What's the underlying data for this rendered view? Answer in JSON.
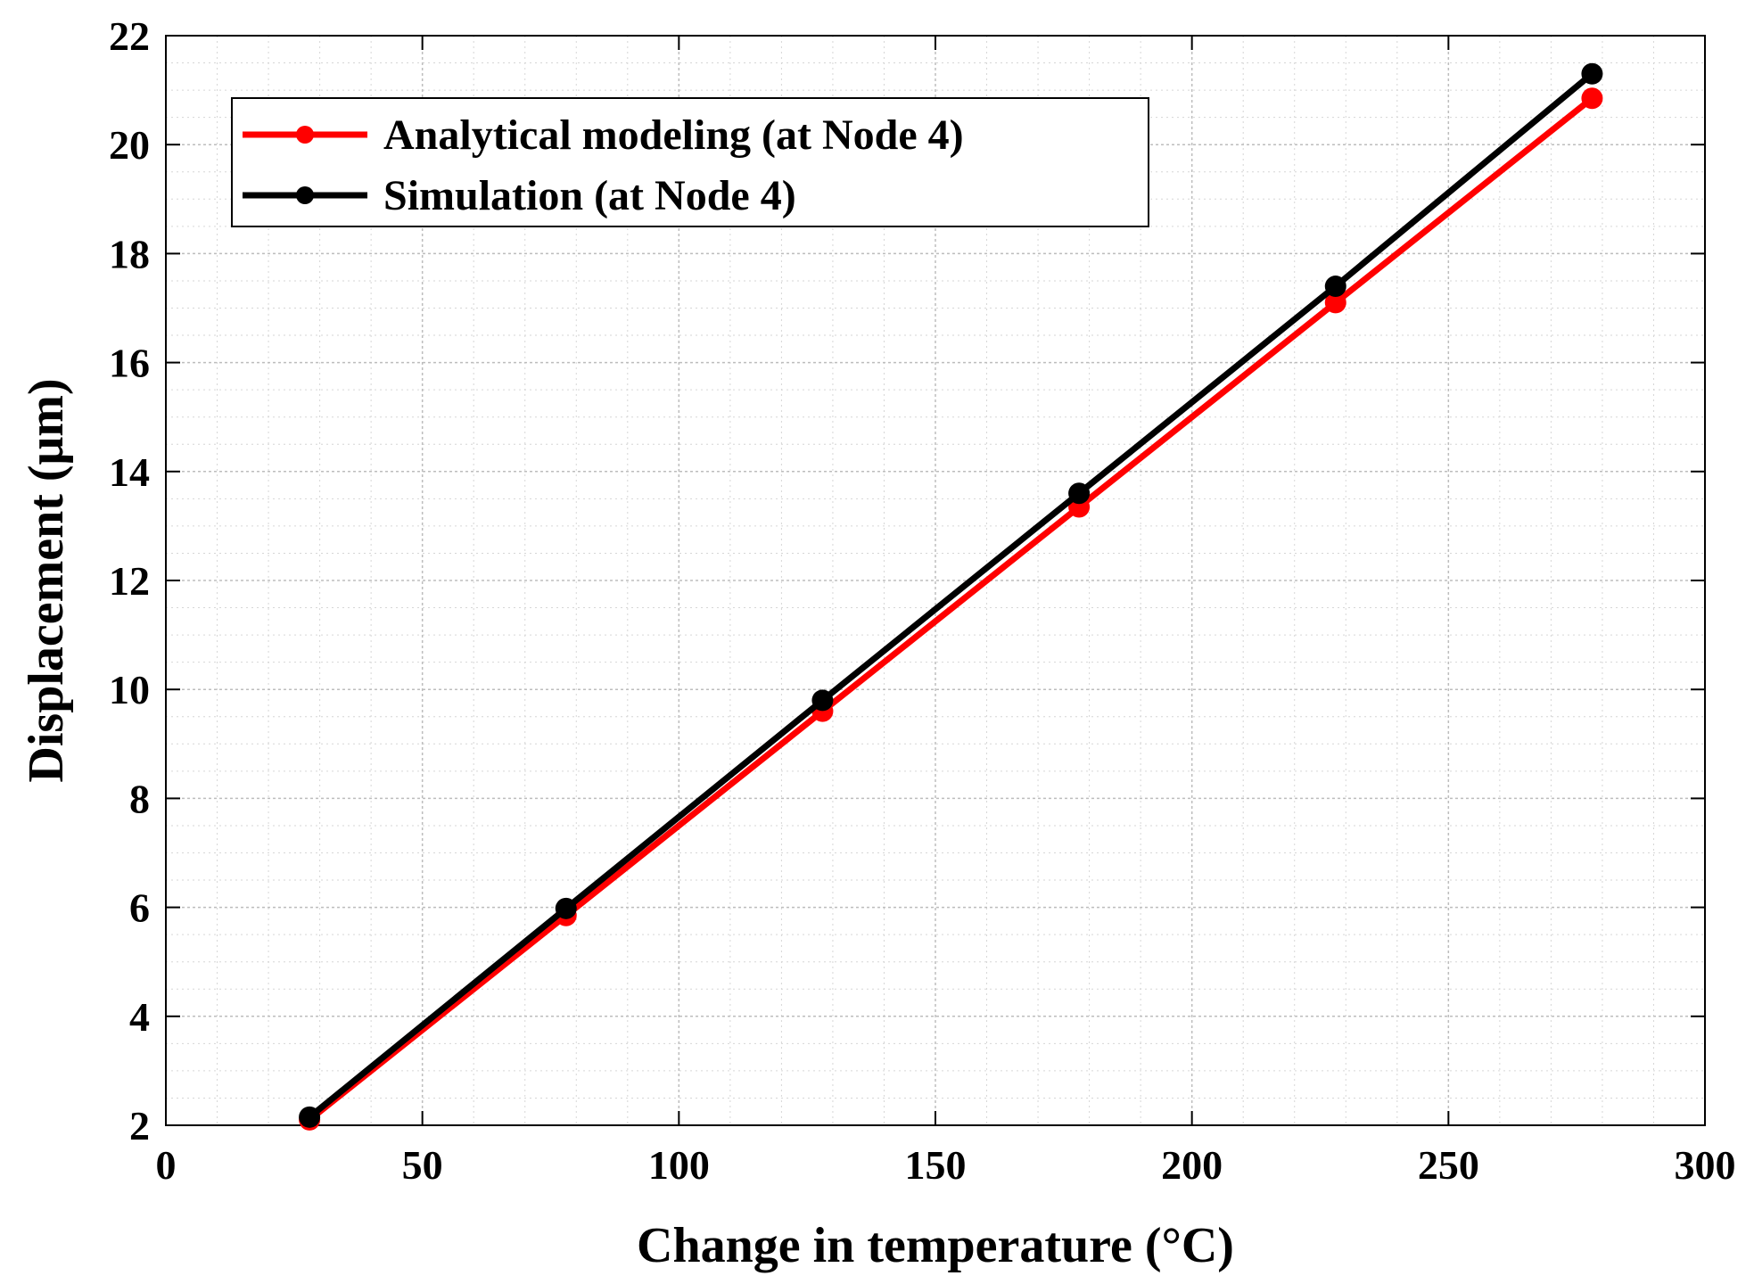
{
  "chart_data": {
    "type": "line",
    "title": "",
    "xlabel": "Change in temperature (°C)",
    "ylabel": "Displacement (μm)",
    "xlim": [
      0,
      300
    ],
    "ylim": [
      2,
      22
    ],
    "xticks": [
      0,
      50,
      100,
      150,
      200,
      250,
      300
    ],
    "yticks": [
      2,
      4,
      6,
      8,
      10,
      12,
      14,
      16,
      18,
      20,
      22
    ],
    "grid": true,
    "minor_grid": true,
    "legend_position": "top-left",
    "x": [
      28,
      78,
      128,
      178,
      228,
      278
    ],
    "series": [
      {
        "name": "Analytical modeling (at Node 4)",
        "color": "#ff0000",
        "values": [
          2.1,
          5.85,
          9.6,
          13.35,
          17.1,
          20.85
        ]
      },
      {
        "name": "Simulation (at Node 4)",
        "color": "#000000",
        "values": [
          2.15,
          5.98,
          9.8,
          13.6,
          17.4,
          21.3
        ]
      }
    ]
  }
}
